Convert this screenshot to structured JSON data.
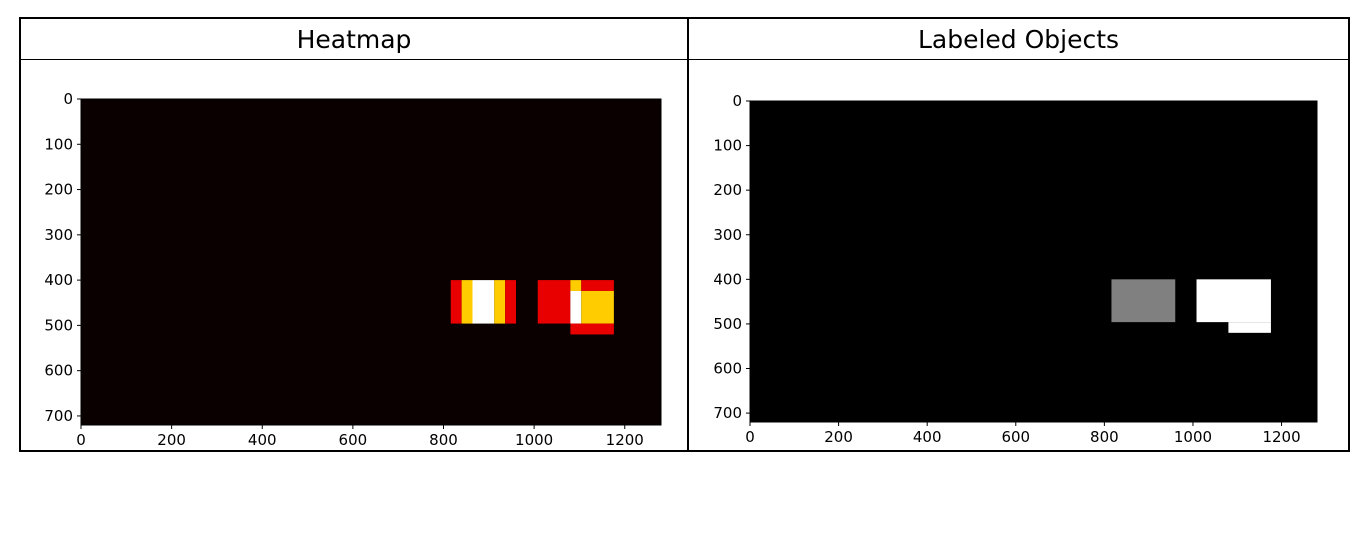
{
  "panels": [
    {
      "header": "Heatmap"
    },
    {
      "header": "Labeled Objects"
    }
  ],
  "chart_data": [
    {
      "type": "heatmap",
      "title": "Heatmap",
      "colormap": "hot",
      "background": "#0a0000",
      "xlim": [
        0,
        1280
      ],
      "ylim": [
        720,
        0
      ],
      "xticks": [
        0,
        200,
        400,
        600,
        800,
        1000,
        1200
      ],
      "yticks": [
        0,
        100,
        200,
        300,
        400,
        500,
        600,
        700
      ],
      "grid": false,
      "regions": [
        {
          "x0": 816,
          "x1": 840,
          "y0": 400,
          "y1": 496,
          "color": "#e80000"
        },
        {
          "x0": 840,
          "x1": 864,
          "y0": 400,
          "y1": 496,
          "color": "#ffcc00"
        },
        {
          "x0": 864,
          "x1": 912,
          "y0": 400,
          "y1": 496,
          "color": "#ffffff"
        },
        {
          "x0": 912,
          "x1": 936,
          "y0": 400,
          "y1": 496,
          "color": "#ffcc00"
        },
        {
          "x0": 936,
          "x1": 960,
          "y0": 400,
          "y1": 496,
          "color": "#e80000"
        },
        {
          "x0": 1008,
          "x1": 1080,
          "y0": 400,
          "y1": 496,
          "color": "#e80000"
        },
        {
          "x0": 1080,
          "x1": 1104,
          "y0": 400,
          "y1": 424,
          "color": "#ffcc00"
        },
        {
          "x0": 1080,
          "x1": 1104,
          "y0": 424,
          "y1": 496,
          "color": "#ffffff"
        },
        {
          "x0": 1104,
          "x1": 1176,
          "y0": 400,
          "y1": 424,
          "color": "#e80000"
        },
        {
          "x0": 1104,
          "x1": 1176,
          "y0": 424,
          "y1": 496,
          "color": "#ffcc00"
        },
        {
          "x0": 1080,
          "x1": 1176,
          "y0": 496,
          "y1": 520,
          "color": "#e80000"
        }
      ]
    },
    {
      "type": "heatmap",
      "title": "Labeled Objects",
      "colormap": "gray",
      "background": "#000000",
      "xlim": [
        0,
        1280
      ],
      "ylim": [
        720,
        0
      ],
      "xticks": [
        0,
        200,
        400,
        600,
        800,
        1000,
        1200
      ],
      "yticks": [
        0,
        100,
        200,
        300,
        400,
        500,
        600,
        700
      ],
      "grid": false,
      "regions": [
        {
          "label": 1,
          "x0": 816,
          "x1": 960,
          "y0": 400,
          "y1": 496,
          "color": "#808080"
        },
        {
          "label": 2,
          "x0": 1008,
          "x1": 1176,
          "y0": 400,
          "y1": 496,
          "color": "#ffffff"
        },
        {
          "label": 2,
          "x0": 1080,
          "x1": 1176,
          "y0": 496,
          "y1": 520,
          "color": "#ffffff"
        }
      ]
    }
  ]
}
